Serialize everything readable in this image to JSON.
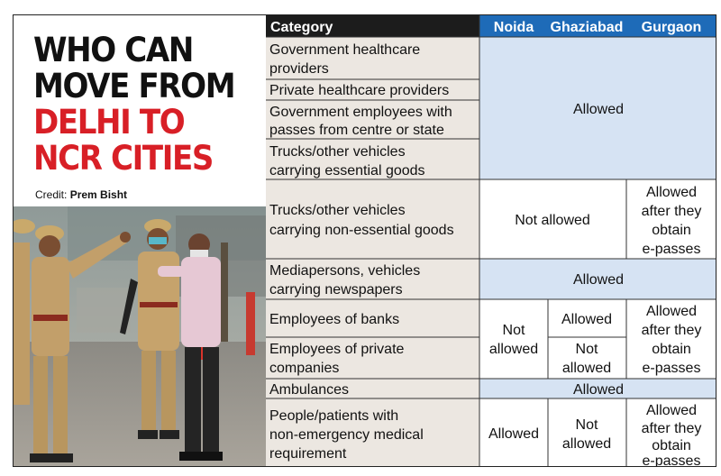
{
  "headline": {
    "line1": "WHO CAN",
    "line2": "MOVE FROM",
    "line3": "DELHI TO",
    "line4": "NCR CITIES"
  },
  "credit": {
    "label": "Credit:",
    "name": "Prem Bisht"
  },
  "table": {
    "headers": {
      "category": "Category",
      "noida": "Noida",
      "ghaziabad": "Ghaziabad",
      "gurgaon": "Gurgaon"
    },
    "categories": {
      "c1a": "Government healthcare",
      "c1b": "providers",
      "c2": "Private healthcare providers",
      "c3a": "Government employees with",
      "c3b": "passes from centre or state",
      "c4a": "Trucks/other vehicles",
      "c4b": "carrying essential goods",
      "c5a": "Trucks/other vehicles",
      "c5b": "carrying non-essential goods",
      "c6a": "Mediapersons, vehicles",
      "c6b": "carrying newspapers",
      "c7": "Employees of banks",
      "c8a": "Employees of private",
      "c8b": "companies",
      "c9": "Ambulances",
      "c10a": "People/patients with",
      "c10b": "non-emergency medical",
      "c10c": "requirement"
    },
    "values": {
      "allowed": "Allowed",
      "not_allowed": "Not allowed",
      "not": "Not",
      "allowed_lc": "allowed",
      "eps1": "Allowed",
      "eps2": "after they",
      "eps3": "obtain",
      "eps4": "e-passes"
    }
  },
  "colors": {
    "header_bg": "#1c1c1c",
    "city_header_bg": "#1e6bb8",
    "category_bg": "#ece7e1",
    "allowed_bg": "#d6e3f3",
    "headline_red": "#d81f26"
  }
}
